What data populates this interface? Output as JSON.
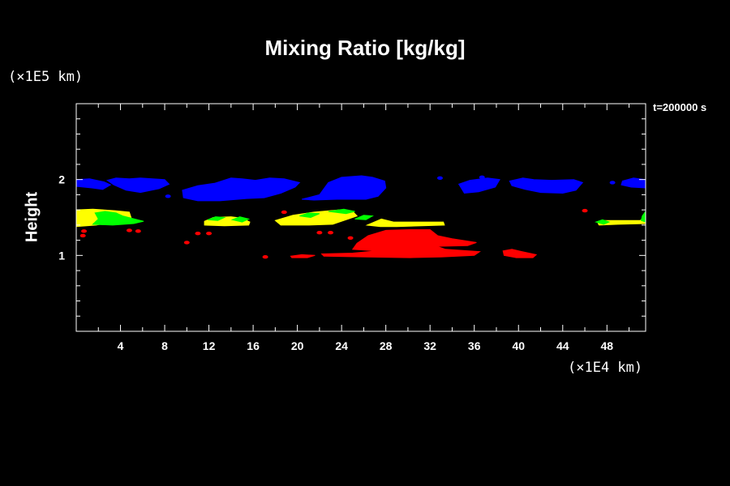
{
  "chart_data": {
    "type": "heatmap",
    "title": "Mixing Ratio [kg/kg]",
    "ylabel": "Height",
    "xlabel": "",
    "y_unit": "(×1E5 km)",
    "x_unit": "(×1E4 km)",
    "time_label": "t=200000 s",
    "xlim": [
      0,
      51.5
    ],
    "ylim": [
      0,
      3
    ],
    "x_ticks": [
      4,
      8,
      12,
      16,
      20,
      24,
      28,
      32,
      36,
      40,
      44,
      48
    ],
    "y_ticks": [
      1,
      2
    ],
    "x_tick_labels": [
      "4",
      "8",
      "12",
      "16",
      "20",
      "24",
      "28",
      "32",
      "36",
      "40",
      "44",
      "48"
    ],
    "y_tick_labels": [
      "1",
      "2"
    ],
    "colors": {
      "background": "#000000",
      "axes": "#ffffff",
      "blue": "#0000ff",
      "yellow": "#ffff00",
      "green": "#00ff00",
      "red": "#ff0000"
    },
    "regions": [
      {
        "color": "blue",
        "x": [
          0,
          51.5
        ],
        "y": [
          1.8,
          2.0
        ],
        "pts": [
          [
            0,
            2.0
          ],
          [
            1.2,
            2.01
          ],
          [
            2.5,
            1.97
          ],
          [
            3.1,
            1.93
          ],
          [
            2.4,
            1.87
          ],
          [
            1.4,
            1.89
          ],
          [
            0,
            1.91
          ]
        ]
      },
      {
        "color": "blue",
        "pts": [
          [
            2.8,
            1.99
          ],
          [
            3.6,
            2.02
          ],
          [
            4.8,
            2.01
          ],
          [
            5.8,
            2.02
          ],
          [
            8.0,
            2.0
          ],
          [
            8.4,
            1.94
          ],
          [
            7.5,
            1.88
          ],
          [
            5.8,
            1.83
          ],
          [
            4.5,
            1.86
          ],
          [
            3.4,
            1.93
          ]
        ]
      },
      {
        "color": "blue",
        "pts": [
          [
            9.6,
            1.86
          ],
          [
            11.0,
            1.92
          ],
          [
            12.5,
            1.95
          ],
          [
            14.0,
            2.02
          ],
          [
            15.0,
            2.01
          ],
          [
            16.2,
            1.99
          ],
          [
            17.5,
            2.02
          ],
          [
            18.8,
            2.01
          ],
          [
            20.2,
            1.96
          ],
          [
            19.8,
            1.9
          ],
          [
            18.5,
            1.82
          ],
          [
            17.0,
            1.76
          ],
          [
            15.4,
            1.75
          ],
          [
            13.0,
            1.72
          ],
          [
            11.0,
            1.72
          ],
          [
            9.7,
            1.76
          ]
        ]
      },
      {
        "color": "blue",
        "pts": [
          [
            20.4,
            1.74
          ],
          [
            22.0,
            1.8
          ],
          [
            22.8,
            1.96
          ],
          [
            24.0,
            2.03
          ],
          [
            25.8,
            2.05
          ],
          [
            26.8,
            2.03
          ],
          [
            27.9,
            1.98
          ],
          [
            28.0,
            1.89
          ],
          [
            27.3,
            1.78
          ],
          [
            26.2,
            1.74
          ],
          [
            23.6,
            1.74
          ],
          [
            21.5,
            1.73
          ]
        ]
      },
      {
        "color": "blue",
        "pts": [
          [
            34.6,
            1.94
          ],
          [
            35.6,
            1.99
          ],
          [
            37.2,
            2.02
          ],
          [
            38.3,
            2.0
          ],
          [
            37.9,
            1.9
          ],
          [
            36.4,
            1.84
          ],
          [
            35.1,
            1.82
          ]
        ]
      },
      {
        "color": "blue",
        "pts": [
          [
            39.2,
            1.98
          ],
          [
            40.4,
            2.02
          ],
          [
            41.4,
            2.0
          ],
          [
            43.0,
            1.99
          ],
          [
            45.0,
            2.0
          ],
          [
            45.8,
            1.96
          ],
          [
            45.2,
            1.86
          ],
          [
            44.0,
            1.82
          ],
          [
            42.0,
            1.83
          ],
          [
            40.6,
            1.87
          ],
          [
            39.4,
            1.92
          ]
        ]
      },
      {
        "color": "blue",
        "pts": [
          [
            49.4,
            1.98
          ],
          [
            50.4,
            2.02
          ],
          [
            51.5,
            2.0
          ],
          [
            51.5,
            1.89
          ],
          [
            50.2,
            1.9
          ],
          [
            49.3,
            1.93
          ]
        ]
      },
      {
        "color": "yellow",
        "pts": [
          [
            0,
            1.6
          ],
          [
            1.5,
            1.61
          ],
          [
            3.5,
            1.59
          ],
          [
            4.8,
            1.57
          ],
          [
            5.0,
            1.48
          ],
          [
            3.6,
            1.45
          ],
          [
            1.8,
            1.4
          ],
          [
            0,
            1.38
          ]
        ]
      },
      {
        "color": "green",
        "pts": [
          [
            1.7,
            1.56
          ],
          [
            2.6,
            1.58
          ],
          [
            3.6,
            1.56
          ],
          [
            4.2,
            1.52
          ],
          [
            6.1,
            1.45
          ],
          [
            5.2,
            1.42
          ],
          [
            3.3,
            1.4
          ],
          [
            1.5,
            1.41
          ],
          [
            2.0,
            1.48
          ]
        ]
      },
      {
        "color": "yellow",
        "pts": [
          [
            11.6,
            1.45
          ],
          [
            12.4,
            1.5
          ],
          [
            14.0,
            1.51
          ],
          [
            15.0,
            1.49
          ],
          [
            15.7,
            1.44
          ],
          [
            15.6,
            1.4
          ],
          [
            13.4,
            1.39
          ],
          [
            11.6,
            1.4
          ]
        ]
      },
      {
        "color": "green",
        "pts": [
          [
            11.9,
            1.47
          ],
          [
            12.6,
            1.51
          ],
          [
            13.4,
            1.5
          ],
          [
            12.8,
            1.46
          ]
        ]
      },
      {
        "color": "green",
        "pts": [
          [
            14.1,
            1.47
          ],
          [
            14.8,
            1.51
          ],
          [
            15.6,
            1.48
          ],
          [
            15.0,
            1.44
          ]
        ]
      },
      {
        "color": "yellow",
        "pts": [
          [
            18.0,
            1.46
          ],
          [
            19.6,
            1.53
          ],
          [
            21.5,
            1.57
          ],
          [
            23.8,
            1.6
          ],
          [
            25.0,
            1.58
          ],
          [
            25.4,
            1.52
          ],
          [
            24.0,
            1.45
          ],
          [
            23.2,
            1.41
          ],
          [
            21.0,
            1.4
          ],
          [
            18.5,
            1.4
          ]
        ]
      },
      {
        "color": "green",
        "pts": [
          [
            20.2,
            1.52
          ],
          [
            21.0,
            1.56
          ],
          [
            22.0,
            1.55
          ],
          [
            21.2,
            1.5
          ]
        ]
      },
      {
        "color": "green",
        "pts": [
          [
            22.8,
            1.58
          ],
          [
            24.2,
            1.61
          ],
          [
            25.2,
            1.58
          ],
          [
            24.4,
            1.55
          ]
        ]
      },
      {
        "color": "green",
        "pts": [
          [
            25.2,
            1.48
          ],
          [
            26.0,
            1.53
          ],
          [
            26.8,
            1.52
          ],
          [
            26.2,
            1.47
          ]
        ]
      },
      {
        "color": "yellow",
        "pts": [
          [
            26.3,
            1.4
          ],
          [
            27.6,
            1.48
          ],
          [
            28.7,
            1.44
          ],
          [
            33.2,
            1.44
          ],
          [
            33.3,
            1.4
          ],
          [
            29.0,
            1.38
          ],
          [
            27.5,
            1.38
          ]
        ]
      },
      {
        "color": "yellow",
        "pts": [
          [
            47.2,
            1.42
          ],
          [
            47.8,
            1.46
          ],
          [
            51.0,
            1.46
          ],
          [
            51.5,
            1.5
          ],
          [
            51.5,
            1.42
          ],
          [
            49.0,
            1.41
          ],
          [
            47.3,
            1.4
          ]
        ]
      },
      {
        "color": "green",
        "pts": [
          [
            47.0,
            1.44
          ],
          [
            47.6,
            1.47
          ],
          [
            48.2,
            1.44
          ],
          [
            47.7,
            1.41
          ]
        ]
      },
      {
        "color": "green",
        "pts": [
          [
            51.2,
            1.52
          ],
          [
            51.5,
            1.58
          ],
          [
            51.5,
            1.44
          ],
          [
            51.1,
            1.46
          ]
        ]
      },
      {
        "color": "red",
        "pts": [
          [
            25.4,
            1.16
          ],
          [
            26.4,
            1.26
          ],
          [
            28.0,
            1.33
          ],
          [
            30.1,
            1.34
          ],
          [
            32.0,
            1.34
          ],
          [
            32.7,
            1.26
          ],
          [
            34.0,
            1.22
          ],
          [
            36.2,
            1.17
          ],
          [
            35.4,
            1.13
          ],
          [
            32.6,
            1.12
          ],
          [
            33.4,
            1.08
          ],
          [
            36.5,
            1.05
          ],
          [
            36.0,
            1.0
          ],
          [
            33.0,
            0.98
          ],
          [
            30.2,
            0.97
          ],
          [
            26.2,
            0.98
          ],
          [
            22.4,
            0.99
          ],
          [
            22.2,
            1.02
          ],
          [
            25.0,
            1.03
          ],
          [
            27.2,
            1.06
          ],
          [
            25.0,
            1.08
          ]
        ]
      },
      {
        "color": "red",
        "pts": [
          [
            19.4,
            0.99
          ],
          [
            20.4,
            1.01
          ],
          [
            21.6,
            1.0
          ],
          [
            20.9,
            0.97
          ],
          [
            19.5,
            0.97
          ]
        ]
      },
      {
        "color": "red",
        "pts": [
          [
            38.6,
            1.06
          ],
          [
            39.4,
            1.08
          ],
          [
            40.3,
            1.05
          ],
          [
            41.6,
            1.01
          ],
          [
            41.3,
            0.97
          ],
          [
            39.8,
            0.97
          ],
          [
            38.7,
            1.0
          ]
        ]
      }
    ],
    "dots": [
      {
        "color": "red",
        "x": 0.7,
        "y": 1.32
      },
      {
        "color": "red",
        "x": 0.6,
        "y": 1.26
      },
      {
        "color": "red",
        "x": 4.8,
        "y": 1.33
      },
      {
        "color": "red",
        "x": 5.6,
        "y": 1.32
      },
      {
        "color": "red",
        "x": 10.0,
        "y": 1.17
      },
      {
        "color": "red",
        "x": 11.0,
        "y": 1.29
      },
      {
        "color": "red",
        "x": 12.0,
        "y": 1.29
      },
      {
        "color": "red",
        "x": 17.1,
        "y": 0.98
      },
      {
        "color": "red",
        "x": 22.0,
        "y": 1.3
      },
      {
        "color": "red",
        "x": 23.0,
        "y": 1.3
      },
      {
        "color": "red",
        "x": 24.8,
        "y": 1.23
      },
      {
        "color": "red",
        "x": 18.8,
        "y": 1.57
      },
      {
        "color": "red",
        "x": 46.0,
        "y": 1.59
      },
      {
        "color": "blue",
        "x": 8.3,
        "y": 1.78
      },
      {
        "color": "blue",
        "x": 32.9,
        "y": 2.02
      },
      {
        "color": "blue",
        "x": 36.7,
        "y": 2.03
      },
      {
        "color": "blue",
        "x": 48.5,
        "y": 1.96
      }
    ]
  }
}
